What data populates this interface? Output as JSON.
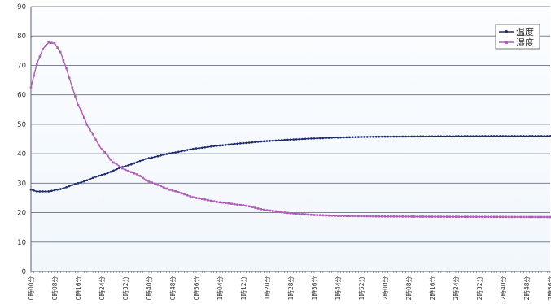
{
  "chart_data": {
    "type": "line",
    "title": "",
    "xlabel": "",
    "ylabel": "",
    "ylim": [
      0,
      90
    ],
    "yticks": [
      0,
      10,
      20,
      30,
      40,
      50,
      60,
      70,
      80,
      90
    ],
    "grid": "horizontal",
    "legend_position": "top-right",
    "x_tick_labels": [
      "0時00分",
      "0時08分",
      "0時16分",
      "0時24分",
      "0時32分",
      "0時40分",
      "0時48分",
      "0時56分",
      "1時04分",
      "1時12分",
      "1時20分",
      "1時28分",
      "1時36分",
      "1時44分",
      "1時52分",
      "2時00分",
      "2時08分",
      "2時16分",
      "2時24分",
      "2時32分",
      "2時40分",
      "2時48分",
      "2時56分"
    ],
    "x_tick_minutes": [
      0,
      8,
      16,
      24,
      32,
      40,
      48,
      56,
      64,
      72,
      80,
      88,
      96,
      104,
      112,
      120,
      128,
      136,
      144,
      152,
      160,
      168,
      176
    ],
    "sample_interval_minutes": 1,
    "series": [
      {
        "name": "温度",
        "color": "#1f2d6e",
        "keypoints": [
          [
            0,
            27.8
          ],
          [
            2,
            27.2
          ],
          [
            6,
            27.2
          ],
          [
            10,
            28.0
          ],
          [
            16,
            30.0
          ],
          [
            24,
            32.8
          ],
          [
            32,
            35.8
          ],
          [
            40,
            38.5
          ],
          [
            48,
            40.3
          ],
          [
            56,
            41.8
          ],
          [
            64,
            42.8
          ],
          [
            72,
            43.6
          ],
          [
            80,
            44.3
          ],
          [
            88,
            44.8
          ],
          [
            96,
            45.2
          ],
          [
            104,
            45.5
          ],
          [
            112,
            45.7
          ],
          [
            120,
            45.8
          ],
          [
            136,
            45.9
          ],
          [
            160,
            46.0
          ],
          [
            176,
            46.0
          ]
        ]
      },
      {
        "name": "湿度",
        "color": "#b05fb8",
        "keypoints": [
          [
            0,
            62.5
          ],
          [
            2,
            70.5
          ],
          [
            4,
            75.5
          ],
          [
            6,
            77.8
          ],
          [
            8,
            77.5
          ],
          [
            10,
            74.5
          ],
          [
            12,
            69.0
          ],
          [
            14,
            62.5
          ],
          [
            16,
            56.5
          ],
          [
            20,
            48.0
          ],
          [
            24,
            41.5
          ],
          [
            28,
            37.0
          ],
          [
            32,
            34.5
          ],
          [
            36,
            33.0
          ],
          [
            40,
            30.5
          ],
          [
            48,
            27.5
          ],
          [
            56,
            25.0
          ],
          [
            64,
            23.5
          ],
          [
            72,
            22.5
          ],
          [
            80,
            20.8
          ],
          [
            88,
            19.8
          ],
          [
            96,
            19.2
          ],
          [
            104,
            18.9
          ],
          [
            112,
            18.8
          ],
          [
            120,
            18.7
          ],
          [
            140,
            18.6
          ],
          [
            176,
            18.5
          ]
        ]
      }
    ]
  }
}
